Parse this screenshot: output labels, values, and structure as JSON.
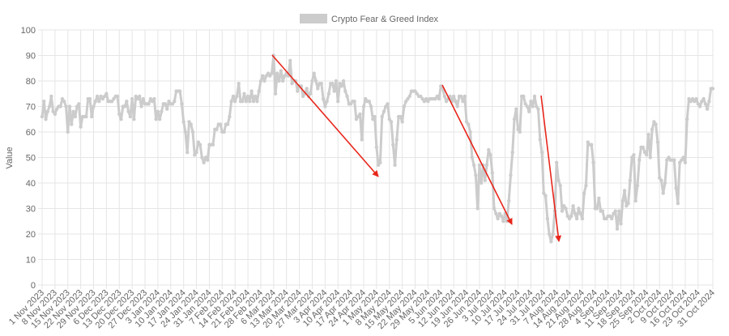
{
  "chart_data": {
    "type": "line",
    "y_label": "Value",
    "grid": true,
    "categories": [
      "1 Nov 2023",
      null,
      null,
      null,
      null,
      null,
      null,
      "8 Nov 2023",
      null,
      null,
      null,
      null,
      null,
      null,
      "15 Nov 2023",
      null,
      null,
      null,
      null,
      null,
      null,
      "22 Nov 2023",
      null,
      null,
      null,
      null,
      null,
      null,
      "29 Nov 2023",
      null,
      null,
      null,
      null,
      null,
      null,
      "6 Dec 2023",
      null,
      null,
      null,
      null,
      null,
      null,
      "13 Dec 2023",
      null,
      null,
      null,
      null,
      null,
      null,
      "20 Dec 2023",
      null,
      null,
      null,
      null,
      null,
      null,
      "27 Dec 2023",
      null,
      null,
      null,
      null,
      null,
      null,
      "3 Jan 2024",
      null,
      null,
      null,
      null,
      null,
      null,
      "10 Jan 2024",
      null,
      null,
      null,
      null,
      null,
      null,
      "17 Jan 2024",
      null,
      null,
      null,
      null,
      null,
      null,
      "24 Jan 2024",
      null,
      null,
      null,
      null,
      null,
      null,
      "31 Jan 2024",
      null,
      null,
      null,
      null,
      null,
      null,
      "7 Feb 2024",
      null,
      null,
      null,
      null,
      null,
      null,
      "14 Feb 2024",
      null,
      null,
      null,
      null,
      null,
      null,
      "21 Feb 2024",
      null,
      null,
      null,
      null,
      null,
      null,
      "28 Feb 2024",
      null,
      null,
      null,
      null,
      null,
      null,
      "6 Mar 2024",
      null,
      null,
      null,
      null,
      null,
      null,
      "13 Mar 2024",
      null,
      null,
      null,
      null,
      null,
      null,
      "20 Mar 2024",
      null,
      null,
      null,
      null,
      null,
      null,
      "27 Mar 2024",
      null,
      null,
      null,
      null,
      null,
      null,
      "3 Apr 2024",
      null,
      null,
      null,
      null,
      null,
      null,
      "10 Apr 2024",
      null,
      null,
      null,
      null,
      null,
      null,
      "17 Apr 2024",
      null,
      null,
      null,
      null,
      null,
      null,
      "24 Apr 2024",
      null,
      null,
      null,
      null,
      null,
      null,
      "1 May 2024",
      null,
      null,
      null,
      null,
      null,
      null,
      "8 May 2024",
      null,
      null,
      null,
      null,
      null,
      null,
      "15 May 2024",
      null,
      null,
      null,
      null,
      null,
      null,
      "22 May 2024",
      null,
      null,
      null,
      null,
      null,
      null,
      "29 May 2024",
      null,
      null,
      null,
      null,
      null,
      null,
      "5 Jun 2024",
      null,
      null,
      null,
      null,
      null,
      null,
      "12 Jun 2024",
      null,
      null,
      null,
      null,
      null,
      null,
      "19 Jun 2024",
      null,
      null,
      null,
      null,
      null,
      null,
      "26 Jun 2024",
      null,
      null,
      null,
      null,
      null,
      null,
      "3 Jul 2024",
      null,
      null,
      null,
      null,
      null,
      null,
      "10 Jul 2024",
      null,
      null,
      null,
      null,
      null,
      null,
      "17 Jul 2024",
      null,
      null,
      null,
      null,
      null,
      null,
      "24 Jul 2024",
      null,
      null,
      null,
      null,
      null,
      null,
      "31 Jul 2024",
      null,
      null,
      null,
      null,
      null,
      null,
      "7 Aug 2024",
      null,
      null,
      null,
      null,
      null,
      null,
      "14 Aug 2024",
      null,
      null,
      null,
      null,
      null,
      null,
      "21 Aug 2024",
      null,
      null,
      null,
      null,
      null,
      null,
      "28 Aug 2024",
      null,
      null,
      null,
      null,
      null,
      null,
      "4 Sep 2024",
      null,
      null,
      null,
      null,
      null,
      null,
      "11 Sep 2024",
      null,
      null,
      null,
      null,
      null,
      null,
      "18 Sep 2024",
      null,
      null,
      null,
      null,
      null,
      null,
      "25 Sep 2024",
      null,
      null,
      null,
      null,
      null,
      null,
      "2 Oct 2024",
      null,
      null,
      null,
      null,
      null,
      null,
      "9 Oct 2024",
      null,
      null,
      null,
      null,
      null,
      null,
      "16 Oct 2024",
      null,
      null,
      null,
      null,
      null,
      null,
      "23 Oct 2024",
      null,
      null,
      null,
      null,
      null,
      null,
      null,
      "31 Oct 2024"
    ],
    "series": [
      {
        "name": "Crypto Fear & Greed Index",
        "color": "#cccccc",
        "values": [
          66,
          72,
          65,
          68,
          70,
          74,
          68,
          67,
          69,
          70,
          70,
          73,
          72,
          70,
          60,
          70,
          63,
          68,
          66,
          70,
          71,
          62,
          66,
          66,
          66,
          73,
          73,
          66,
          70,
          72,
          74,
          72,
          74,
          73,
          74,
          75,
          72,
          72,
          72,
          73,
          74,
          74,
          67,
          65,
          70,
          70,
          72,
          68,
          66,
          73,
          65,
          74,
          73,
          74,
          70,
          73,
          71,
          71,
          71,
          73,
          72,
          73,
          65,
          68,
          65,
          68,
          71,
          71,
          69,
          72,
          71,
          71,
          72,
          76,
          76,
          76,
          71,
          64,
          60,
          52,
          64,
          63,
          60,
          51,
          52,
          56,
          55,
          50,
          48,
          50,
          49,
          55,
          55,
          55,
          61,
          61,
          63,
          63,
          60,
          60,
          63,
          63,
          66,
          72,
          74,
          72,
          74,
          79,
          72,
          72,
          75,
          72,
          74,
          72,
          76,
          72,
          74,
          72,
          76,
          80,
          82,
          80,
          82,
          83,
          82,
          83,
          90,
          75,
          83,
          80,
          84,
          80,
          82,
          83,
          82,
          88,
          79,
          80,
          80,
          76,
          78,
          78,
          74,
          75,
          77,
          74,
          75,
          80,
          83,
          80,
          77,
          79,
          79,
          73,
          70,
          72,
          75,
          79,
          79,
          76,
          80,
          72,
          79,
          78,
          80,
          76,
          74,
          71,
          71,
          72,
          72,
          65,
          66,
          67,
          57,
          70,
          73,
          72,
          72,
          70,
          65,
          66,
          54,
          47,
          48,
          66,
          68,
          70,
          71,
          65,
          64,
          55,
          47,
          57,
          66,
          66,
          64,
          70,
          72,
          73,
          74,
          76,
          76,
          76,
          75,
          74,
          74,
          73,
          72,
          73,
          72,
          73,
          73,
          73,
          73,
          74,
          73,
          78,
          77,
          74,
          72,
          73,
          74,
          72,
          74,
          72,
          70,
          74,
          74,
          72,
          74,
          64,
          63,
          60,
          50,
          47,
          43,
          30,
          47,
          40,
          47,
          41,
          47,
          53,
          51,
          44,
          30,
          28,
          26,
          28,
          27,
          25,
          28,
          25,
          33,
          43,
          52,
          65,
          69,
          61,
          60,
          74,
          74,
          71,
          70,
          68,
          72,
          70,
          74,
          70,
          69,
          57,
          52,
          36,
          35,
          26,
          20,
          17,
          20,
          29,
          48,
          41,
          39,
          29,
          31,
          30,
          27,
          26,
          27,
          31,
          28,
          26,
          30,
          28,
          26,
          36,
          39,
          56,
          55,
          55,
          48,
          30,
          30,
          34,
          29,
          29,
          26,
          26,
          27,
          27,
          26,
          28,
          29,
          22,
          29,
          24,
          33,
          37,
          31,
          32,
          41,
          50,
          51,
          33,
          39,
          49,
          54,
          54,
          52,
          51,
          59,
          50,
          61,
          64,
          63,
          56,
          42,
          41,
          36,
          40,
          49,
          50,
          49,
          49,
          49,
          38,
          32,
          48,
          49,
          50,
          48,
          65,
          73,
          72,
          73,
          72,
          73,
          71,
          70,
          72,
          73,
          71,
          69,
          72,
          77,
          77
        ]
      }
    ],
    "ylim": [
      0,
      100
    ],
    "yticks": [
      0,
      10,
      20,
      30,
      40,
      50,
      60,
      70,
      80,
      90,
      100
    ]
  }
}
